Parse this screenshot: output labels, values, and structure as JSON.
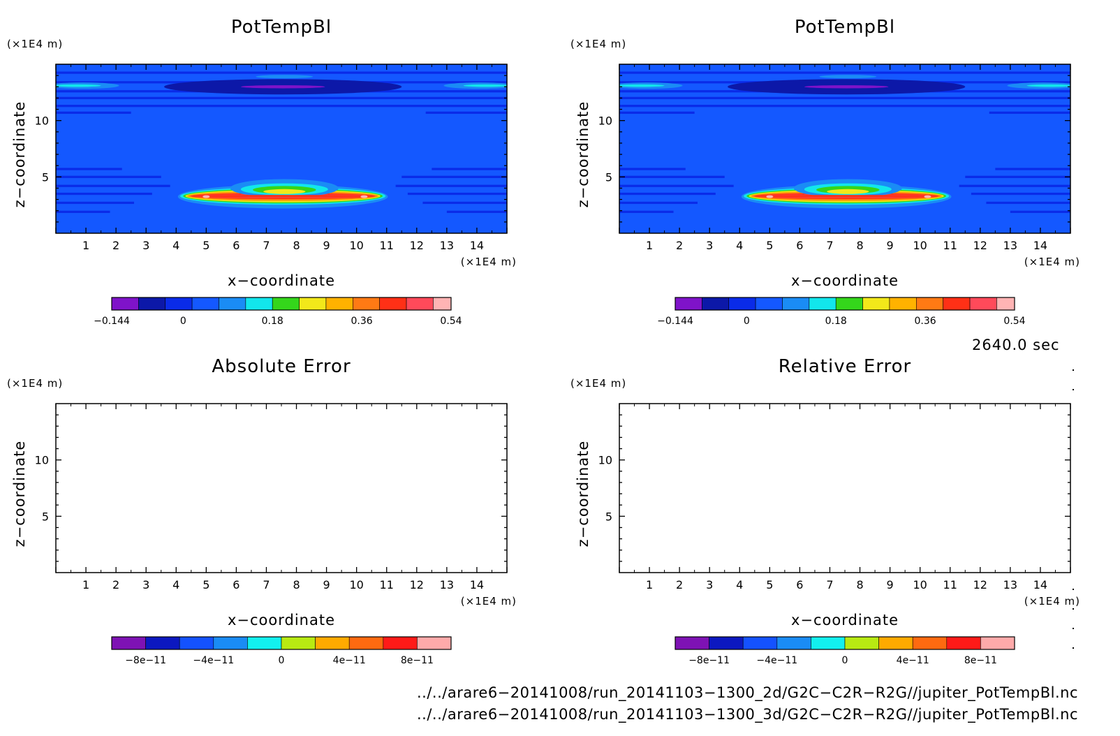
{
  "chart_data": [
    {
      "type": "heatmap",
      "title": "PotTempBl",
      "xlabel": "x−coordinate",
      "ylabel": "z−coordinate",
      "x_unit": "(×1E4 m)",
      "y_unit": "(×1E4 m)",
      "xlim": [
        0,
        15
      ],
      "ylim": [
        0,
        15
      ],
      "xticks": [
        "1",
        "2",
        "3",
        "4",
        "5",
        "6",
        "7",
        "8",
        "9",
        "10",
        "11",
        "12",
        "13",
        "14"
      ],
      "yticks": [
        "5",
        "10"
      ],
      "colorbar": {
        "levels": [
          -0.144,
          -0.09,
          -0.036,
          0.018,
          0.072,
          0.126,
          0.18,
          0.234,
          0.288,
          0.342,
          0.396,
          0.45,
          0.504,
          0.54
        ],
        "colors": [
          "#7f13c9",
          "#0c18a8",
          "#0a2be8",
          "#1458ff",
          "#1a8cf5",
          "#12e6ec",
          "#34d61b",
          "#f2e81a",
          "#ffb200",
          "#ff7a14",
          "#ff3016",
          "#ff4a5a",
          "#ffb4b4"
        ],
        "tick_labels": [
          "−0.144",
          "0",
          "0.18",
          "0.36",
          "0.54"
        ]
      }
    },
    {
      "type": "heatmap",
      "title": "PotTempBl",
      "xlabel": "x−coordinate",
      "ylabel": "z−coordinate",
      "x_unit": "(×1E4 m)",
      "y_unit": "(×1E4 m)",
      "xlim": [
        0,
        15
      ],
      "ylim": [
        0,
        15
      ],
      "xticks": [
        "1",
        "2",
        "3",
        "4",
        "5",
        "6",
        "7",
        "8",
        "9",
        "10",
        "11",
        "12",
        "13",
        "14"
      ],
      "yticks": [
        "5",
        "10"
      ],
      "colorbar": {
        "levels": [
          -0.144,
          -0.09,
          -0.036,
          0.018,
          0.072,
          0.126,
          0.18,
          0.234,
          0.288,
          0.342,
          0.396,
          0.45,
          0.504,
          0.54
        ],
        "colors": [
          "#7f13c9",
          "#0c18a8",
          "#0a2be8",
          "#1458ff",
          "#1a8cf5",
          "#12e6ec",
          "#34d61b",
          "#f2e81a",
          "#ffb200",
          "#ff7a14",
          "#ff3016",
          "#ff4a5a",
          "#ffb4b4"
        ],
        "tick_labels": [
          "−0.144",
          "0",
          "0.18",
          "0.36",
          "0.54"
        ]
      }
    },
    {
      "type": "heatmap",
      "title": "Absolute Error",
      "xlabel": "x−coordinate",
      "ylabel": "z−coordinate",
      "x_unit": "(×1E4 m)",
      "y_unit": "(×1E4 m)",
      "xlim": [
        0,
        15
      ],
      "ylim": [
        0,
        15
      ],
      "xticks": [
        "1",
        "2",
        "3",
        "4",
        "5",
        "6",
        "7",
        "8",
        "9",
        "10",
        "11",
        "12",
        "13",
        "14"
      ],
      "yticks": [
        "5",
        "10"
      ],
      "colorbar": {
        "levels": [
          -1e-10,
          -8e-11,
          -6e-11,
          -4e-11,
          -2e-11,
          0,
          2e-11,
          4e-11,
          6e-11,
          8e-11,
          1e-10
        ],
        "colors": [
          "#7e12b4",
          "#0c18c0",
          "#1452ff",
          "#1a8cf5",
          "#12f0ef",
          "#b8ea12",
          "#ffaa00",
          "#ff6a10",
          "#ff1a18",
          "#ffaaaa"
        ],
        "tick_labels": [
          "−8e−11",
          "−4e−11",
          "0",
          "4e−11",
          "8e−11"
        ]
      }
    },
    {
      "type": "heatmap",
      "title": "Relative Error",
      "xlabel": "x−coordinate",
      "ylabel": "z−coordinate",
      "x_unit": "(×1E4 m)",
      "y_unit": "(×1E4 m)",
      "xlim": [
        0,
        15
      ],
      "ylim": [
        0,
        15
      ],
      "xticks": [
        "1",
        "2",
        "3",
        "4",
        "5",
        "6",
        "7",
        "8",
        "9",
        "10",
        "11",
        "12",
        "13",
        "14"
      ],
      "yticks": [
        "5",
        "10"
      ],
      "colorbar": {
        "levels": [
          -1e-10,
          -8e-11,
          -6e-11,
          -4e-11,
          -2e-11,
          0,
          2e-11,
          4e-11,
          6e-11,
          8e-11,
          1e-10
        ],
        "colors": [
          "#7e12b4",
          "#0c18c0",
          "#1452ff",
          "#1a8cf5",
          "#12f0ef",
          "#b8ea12",
          "#ffaa00",
          "#ff6a10",
          "#ff1a18",
          "#ffaaaa"
        ],
        "tick_labels": [
          "−8e−11",
          "−4e−11",
          "0",
          "4e−11",
          "8e−11"
        ]
      }
    }
  ],
  "time_label": "2640.0 sec",
  "footer": {
    "file_2d": "../../arare6−20141008/run_20141103−1300_2d/G2C−C2R−R2G//jupiter_PotTempBl.nc",
    "file_3d": "../../arare6−20141008/run_20141103−1300_3d/G2C−C2R−R2G//jupiter_PotTempBl.nc"
  }
}
